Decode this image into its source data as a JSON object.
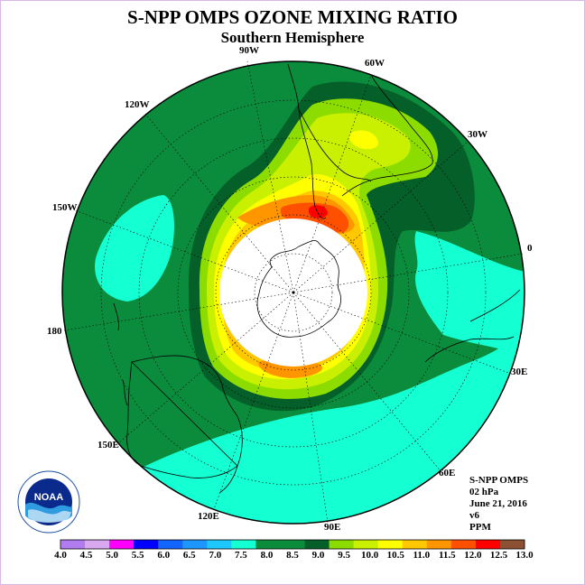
{
  "title": "S-NPP OMPS OZONE MIXING RATIO",
  "subtitle": "Southern Hemisphere",
  "longitude_labels": {
    "lon_90w": "90W",
    "lon_60w": "60W",
    "lon_30w": "30W",
    "lon_0": "0",
    "lon_30e": "30E",
    "lon_60e": "60E",
    "lon_90e": "90E",
    "lon_120e": "120E",
    "lon_150e": "150E",
    "lon_180": "180",
    "lon_150w": "150W",
    "lon_120w": "120W"
  },
  "info": {
    "instrument": "S-NPP OMPS",
    "level": "02 hPa",
    "date": "June 21, 2016",
    "version": "v6",
    "units": "PPM"
  },
  "logo_text": "NOAA",
  "colorbar": {
    "ticks": [
      "4.0",
      "4.5",
      "5.0",
      "5.5",
      "6.0",
      "6.5",
      "7.0",
      "7.5",
      "8.0",
      "8.5",
      "9.0",
      "9.5",
      "10.0",
      "10.5",
      "11.0",
      "11.5",
      "12.0",
      "12.5",
      "13.0"
    ],
    "colors": [
      "#b07cf0",
      "#d8a8f0",
      "#ff00ff",
      "#0000ff",
      "#1464ff",
      "#1e96ff",
      "#1ec8ff",
      "#14ffd2",
      "#0a8c3c",
      "#0a8c3c",
      "#055f28",
      "#8cdc00",
      "#c8f000",
      "#ffff00",
      "#ffc800",
      "#ff9600",
      "#ff5000",
      "#ff0000",
      "#8c5032"
    ]
  },
  "field_colors": {
    "c8_0": "#14ffd2",
    "c8_5": "#0a8c3c",
    "c9_0": "#055f28",
    "c9_5": "#8cdc00",
    "c10_0": "#c8f000",
    "c10_5": "#ffff00",
    "c11_0": "#ffc800",
    "c11_5": "#ff9600",
    "c12_0": "#ff5000",
    "c12_5": "#ff0000"
  }
}
